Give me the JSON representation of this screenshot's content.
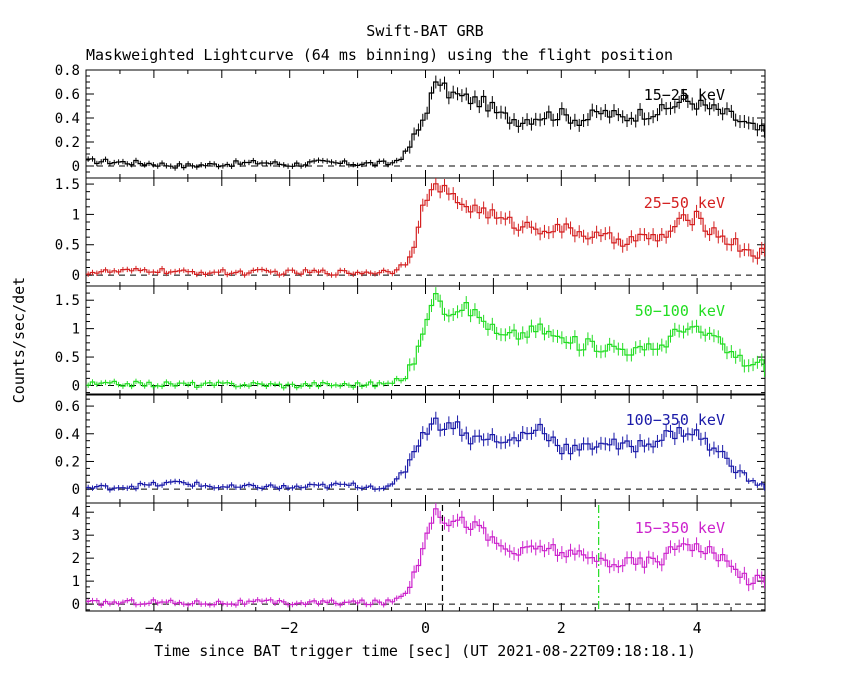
{
  "title": "Swift-BAT GRB",
  "subtitle": "Maskweighted Lightcurve (64 ms binning) using the flight position",
  "chart_data": {
    "type": "line",
    "xlabel": "Time since BAT trigger time [sec] (UT 2021-08-22T09:18:18.1)",
    "ylabel": "Counts/sec/det",
    "xlim": [
      -5,
      5
    ],
    "x_ticks": [
      -4,
      -2,
      0,
      2,
      4
    ],
    "x_tick_labels": [
      "−4",
      "−2",
      "0",
      "2",
      "4"
    ],
    "bin_width_s": 0.064,
    "panels": [
      {
        "name": "15−25 keV",
        "color": "#000000",
        "ylim": [
          -0.1,
          0.8
        ],
        "y_ticks": [
          0,
          0.2,
          0.4,
          0.6,
          0.8
        ],
        "y_tick_labels": [
          "0",
          "0.2",
          "0.4",
          "0.6",
          "0.8"
        ],
        "x": [
          -4.8,
          -4.4,
          -4.0,
          -3.6,
          -3.2,
          -2.8,
          -2.4,
          -2.0,
          -1.6,
          -1.2,
          -0.8,
          -0.5,
          -0.3,
          -0.1,
          0.0,
          0.1,
          0.2,
          0.3,
          0.5,
          0.7,
          0.9,
          1.1,
          1.4,
          1.7,
          2.0,
          2.3,
          2.6,
          2.9,
          3.2,
          3.5,
          3.8,
          4.0,
          4.2,
          4.5,
          4.8,
          5.0
        ],
        "values": [
          0.04,
          0.03,
          0.02,
          0.0,
          0.01,
          0.02,
          0.03,
          0.01,
          0.03,
          0.02,
          0.02,
          0.02,
          0.1,
          0.3,
          0.45,
          0.6,
          0.72,
          0.62,
          0.58,
          0.55,
          0.52,
          0.42,
          0.38,
          0.42,
          0.43,
          0.38,
          0.45,
          0.4,
          0.44,
          0.46,
          0.55,
          0.52,
          0.48,
          0.42,
          0.32,
          0.28
        ]
      },
      {
        "name": "25−50 keV",
        "color": "#d42020",
        "ylim": [
          -0.18,
          1.6
        ],
        "y_ticks": [
          0,
          0.5,
          1,
          1.5
        ],
        "y_tick_labels": [
          "0",
          "0.5",
          "1",
          "1.5"
        ],
        "x": [
          -4.8,
          -4.4,
          -4.0,
          -3.6,
          -3.2,
          -2.8,
          -2.4,
          -2.0,
          -1.6,
          -1.2,
          -0.8,
          -0.5,
          -0.3,
          -0.1,
          0.0,
          0.1,
          0.2,
          0.3,
          0.5,
          0.7,
          0.9,
          1.1,
          1.4,
          1.7,
          2.0,
          2.3,
          2.6,
          2.9,
          3.2,
          3.5,
          3.8,
          4.0,
          4.2,
          4.5,
          4.8,
          5.0
        ],
        "values": [
          0.05,
          0.06,
          0.08,
          0.04,
          0.05,
          0.04,
          0.05,
          0.04,
          0.05,
          0.04,
          0.05,
          0.06,
          0.2,
          0.75,
          1.3,
          1.4,
          1.45,
          1.35,
          1.2,
          1.1,
          1.05,
          0.9,
          0.82,
          0.78,
          0.75,
          0.7,
          0.6,
          0.58,
          0.6,
          0.62,
          0.9,
          0.95,
          0.75,
          0.55,
          0.38,
          0.35
        ]
      },
      {
        "name": "50−100 keV",
        "color": "#22dd22",
        "ylim": [
          -0.15,
          1.75
        ],
        "y_ticks": [
          0,
          0.5,
          1,
          1.5
        ],
        "y_tick_labels": [
          "0",
          "0.5",
          "1",
          "1.5"
        ],
        "x": [
          -4.8,
          -4.4,
          -4.0,
          -3.6,
          -3.2,
          -2.8,
          -2.4,
          -2.0,
          -1.6,
          -1.2,
          -0.8,
          -0.5,
          -0.3,
          -0.1,
          0.0,
          0.1,
          0.2,
          0.3,
          0.5,
          0.7,
          0.9,
          1.1,
          1.4,
          1.7,
          2.0,
          2.3,
          2.6,
          2.9,
          3.2,
          3.5,
          3.8,
          4.0,
          4.2,
          4.5,
          4.8,
          5.0
        ],
        "values": [
          0.02,
          0.03,
          0.02,
          0.02,
          0.01,
          0.02,
          0.02,
          0.0,
          0.02,
          0.01,
          0.02,
          0.03,
          0.15,
          0.6,
          1.2,
          1.45,
          1.6,
          1.3,
          1.4,
          1.3,
          1.1,
          0.85,
          0.9,
          1.0,
          0.8,
          0.72,
          0.7,
          0.65,
          0.6,
          0.72,
          1.05,
          0.95,
          0.88,
          0.55,
          0.35,
          0.38
        ]
      },
      {
        "name": "100−350 keV",
        "color": "#1a1aa8",
        "ylim": [
          -0.1,
          0.68
        ],
        "y_ticks": [
          0,
          0.2,
          0.4,
          0.6
        ],
        "y_tick_labels": [
          "0",
          "0.2",
          "0.4",
          "0.6"
        ],
        "x": [
          -4.8,
          -4.4,
          -4.0,
          -3.6,
          -3.2,
          -2.8,
          -2.4,
          -2.0,
          -1.6,
          -1.2,
          -0.8,
          -0.5,
          -0.3,
          -0.1,
          0.0,
          0.1,
          0.2,
          0.3,
          0.5,
          0.7,
          0.9,
          1.1,
          1.4,
          1.7,
          2.0,
          2.3,
          2.6,
          2.9,
          3.2,
          3.5,
          3.8,
          4.0,
          4.2,
          4.5,
          4.8,
          5.0
        ],
        "values": [
          0.01,
          0.02,
          0.03,
          0.05,
          0.02,
          0.01,
          0.02,
          0.01,
          0.02,
          0.03,
          0.02,
          0.01,
          0.15,
          0.35,
          0.42,
          0.5,
          0.45,
          0.48,
          0.45,
          0.35,
          0.4,
          0.32,
          0.38,
          0.45,
          0.3,
          0.28,
          0.35,
          0.3,
          0.32,
          0.38,
          0.42,
          0.4,
          0.3,
          0.2,
          0.05,
          0.02
        ]
      },
      {
        "name": "15−350 keV",
        "color": "#cc22cc",
        "ylim": [
          -0.3,
          4.4
        ],
        "y_ticks": [
          0,
          1,
          2,
          3,
          4
        ],
        "y_tick_labels": [
          "0",
          "1",
          "2",
          "3",
          "4"
        ],
        "x": [
          -4.8,
          -4.4,
          -4.0,
          -3.6,
          -3.2,
          -2.8,
          -2.4,
          -2.0,
          -1.6,
          -1.2,
          -0.8,
          -0.5,
          -0.3,
          -0.1,
          0.0,
          0.1,
          0.2,
          0.3,
          0.5,
          0.7,
          0.9,
          1.1,
          1.4,
          1.7,
          2.0,
          2.3,
          2.6,
          2.9,
          3.2,
          3.5,
          3.8,
          4.0,
          4.2,
          4.5,
          4.8,
          5.0
        ],
        "values": [
          0.05,
          0.08,
          0.1,
          0.05,
          0.06,
          0.05,
          0.08,
          0.05,
          0.06,
          0.07,
          0.06,
          0.08,
          0.5,
          1.8,
          3.2,
          3.8,
          4.0,
          3.7,
          3.6,
          3.5,
          3.0,
          2.5,
          2.2,
          2.5,
          2.3,
          2.0,
          1.9,
          1.8,
          1.8,
          2.0,
          2.8,
          2.5,
          2.3,
          1.6,
          1.05,
          1.0
        ]
      }
    ],
    "markers": {
      "panel": 4,
      "black_dashed_x": 0.25,
      "green_dash_dot_x": 2.55,
      "green_color": "#22dd22"
    }
  }
}
